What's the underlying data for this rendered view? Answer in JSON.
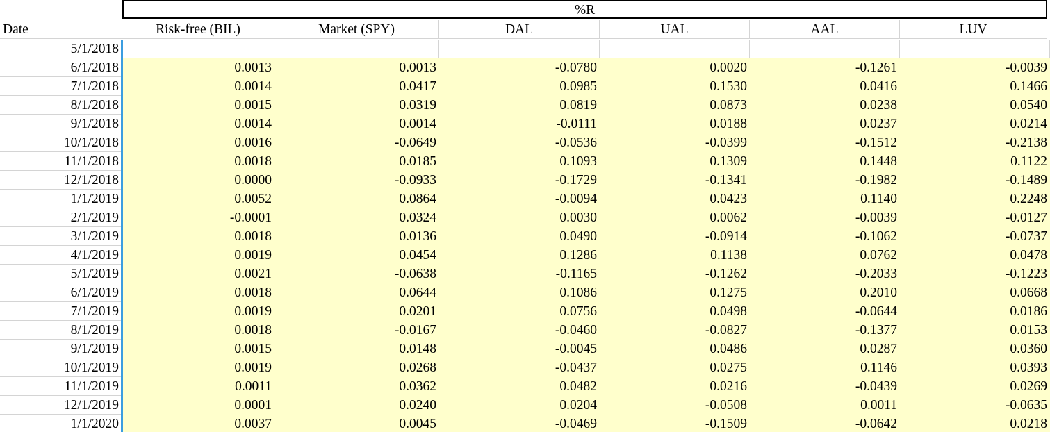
{
  "header": {
    "group_title": "%R",
    "date_label": "Date",
    "columns": [
      "Risk-free (BIL)",
      "Market (SPY)",
      "DAL",
      "UAL",
      "AAL",
      "LUV"
    ]
  },
  "colors": {
    "data_fill": "#ffffcc",
    "selection": "#3b9de0",
    "gridline": "#d4d4d4"
  },
  "rows": [
    {
      "date": "5/1/2018",
      "values": [
        "",
        "",
        "",
        "",
        "",
        ""
      ]
    },
    {
      "date": "6/1/2018",
      "values": [
        "0.0013",
        "0.0013",
        "-0.0780",
        "0.0020",
        "-0.1261",
        "-0.0039"
      ]
    },
    {
      "date": "7/1/2018",
      "values": [
        "0.0014",
        "0.0417",
        "0.0985",
        "0.1530",
        "0.0416",
        "0.1466"
      ]
    },
    {
      "date": "8/1/2018",
      "values": [
        "0.0015",
        "0.0319",
        "0.0819",
        "0.0873",
        "0.0238",
        "0.0540"
      ]
    },
    {
      "date": "9/1/2018",
      "values": [
        "0.0014",
        "0.0014",
        "-0.0111",
        "0.0188",
        "0.0237",
        "0.0214"
      ]
    },
    {
      "date": "10/1/2018",
      "values": [
        "0.0016",
        "-0.0649",
        "-0.0536",
        "-0.0399",
        "-0.1512",
        "-0.2138"
      ]
    },
    {
      "date": "11/1/2018",
      "values": [
        "0.0018",
        "0.0185",
        "0.1093",
        "0.1309",
        "0.1448",
        "0.1122"
      ]
    },
    {
      "date": "12/1/2018",
      "values": [
        "0.0000",
        "-0.0933",
        "-0.1729",
        "-0.1341",
        "-0.1982",
        "-0.1489"
      ]
    },
    {
      "date": "1/1/2019",
      "values": [
        "0.0052",
        "0.0864",
        "-0.0094",
        "0.0423",
        "0.1140",
        "0.2248"
      ]
    },
    {
      "date": "2/1/2019",
      "values": [
        "-0.0001",
        "0.0324",
        "0.0030",
        "0.0062",
        "-0.0039",
        "-0.0127"
      ]
    },
    {
      "date": "3/1/2019",
      "values": [
        "0.0018",
        "0.0136",
        "0.0490",
        "-0.0914",
        "-0.1062",
        "-0.0737"
      ]
    },
    {
      "date": "4/1/2019",
      "values": [
        "0.0019",
        "0.0454",
        "0.1286",
        "0.1138",
        "0.0762",
        "0.0478"
      ]
    },
    {
      "date": "5/1/2019",
      "values": [
        "0.0021",
        "-0.0638",
        "-0.1165",
        "-0.1262",
        "-0.2033",
        "-0.1223"
      ]
    },
    {
      "date": "6/1/2019",
      "values": [
        "0.0018",
        "0.0644",
        "0.1086",
        "0.1275",
        "0.2010",
        "0.0668"
      ]
    },
    {
      "date": "7/1/2019",
      "values": [
        "0.0019",
        "0.0201",
        "0.0756",
        "0.0498",
        "-0.0644",
        "0.0186"
      ]
    },
    {
      "date": "8/1/2019",
      "values": [
        "0.0018",
        "-0.0167",
        "-0.0460",
        "-0.0827",
        "-0.1377",
        "0.0153"
      ]
    },
    {
      "date": "9/1/2019",
      "values": [
        "0.0015",
        "0.0148",
        "-0.0045",
        "0.0486",
        "0.0287",
        "0.0360"
      ]
    },
    {
      "date": "10/1/2019",
      "values": [
        "0.0019",
        "0.0268",
        "-0.0437",
        "0.0275",
        "0.1146",
        "0.0393"
      ]
    },
    {
      "date": "11/1/2019",
      "values": [
        "0.0011",
        "0.0362",
        "0.0482",
        "0.0216",
        "-0.0439",
        "0.0269"
      ]
    },
    {
      "date": "12/1/2019",
      "values": [
        "0.0001",
        "0.0240",
        "0.0204",
        "-0.0508",
        "0.0011",
        "-0.0635"
      ]
    },
    {
      "date": "1/1/2020",
      "values": [
        "0.0037",
        "0.0045",
        "-0.0469",
        "-0.1509",
        "-0.0642",
        "0.0218"
      ]
    }
  ]
}
